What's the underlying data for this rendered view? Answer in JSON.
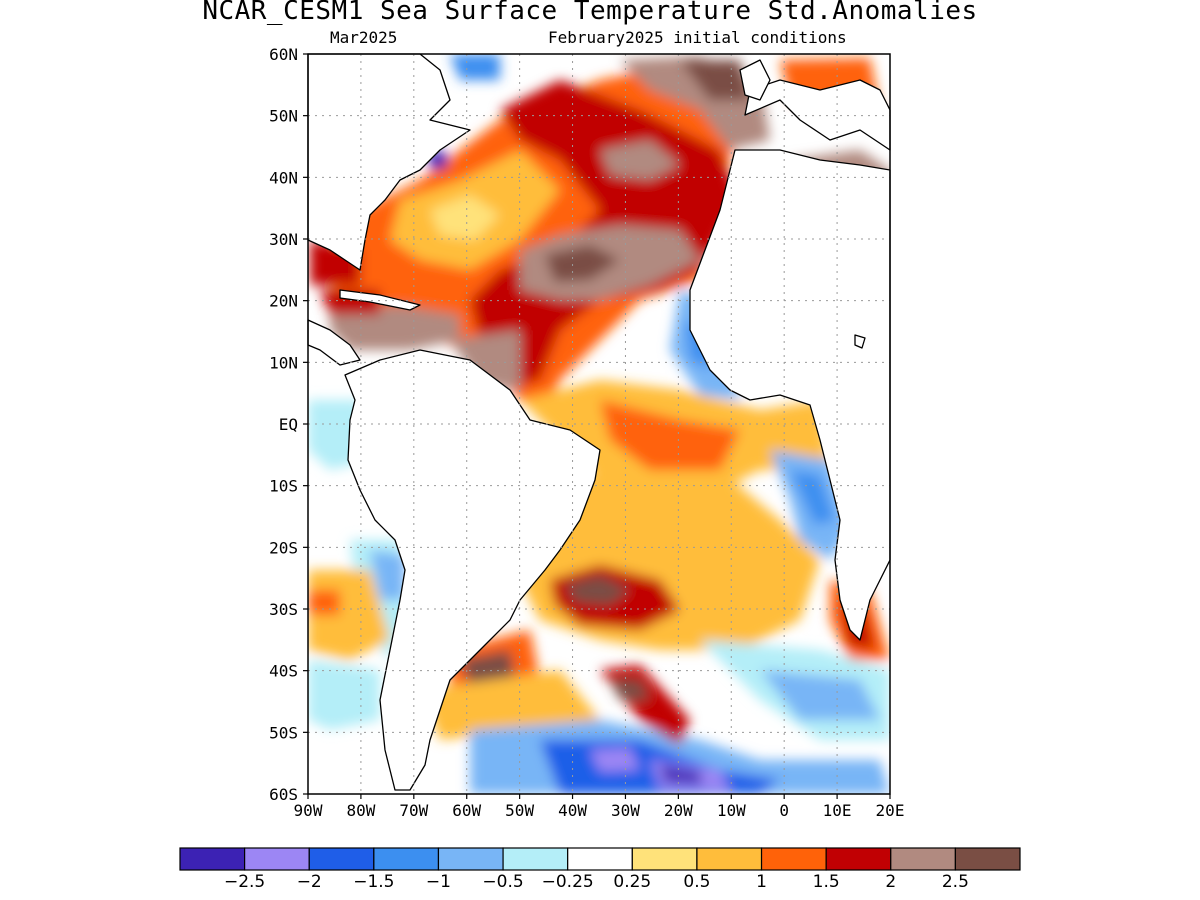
{
  "title": "NCAR_CESM1 Sea Surface Temperature Std.Anomalies",
  "valid_month": "Mar2025",
  "init_conditions": "February2025 initial conditions",
  "lat_labels": [
    "60N",
    "50N",
    "40N",
    "30N",
    "20N",
    "10N",
    "EQ",
    "10S",
    "20S",
    "30S",
    "40S",
    "50S",
    "60S"
  ],
  "lon_labels": [
    "90W",
    "80W",
    "70W",
    "60W",
    "50W",
    "40W",
    "30W",
    "20W",
    "10W",
    "0",
    "10E",
    "20E"
  ],
  "colorbar": {
    "colors": [
      "#3c22b4",
      "#9c86f4",
      "#1f5ee8",
      "#3c8ff0",
      "#78b5f6",
      "#b4eef8",
      "#ffffff",
      "#ffe27a",
      "#ffbd3b",
      "#ff6209",
      "#c10003",
      "#b18a80",
      "#7a4e44"
    ],
    "labels": [
      "−2.5",
      "−2",
      "−1.5",
      "−1",
      "−0.5",
      "−0.25",
      "0.25",
      "0.5",
      "1",
      "1.5",
      "2",
      "2.5"
    ]
  },
  "legend_colors": {
    "land": "#ffffff",
    "coastline": "#000000",
    "grid": "#9a9a9a"
  }
}
